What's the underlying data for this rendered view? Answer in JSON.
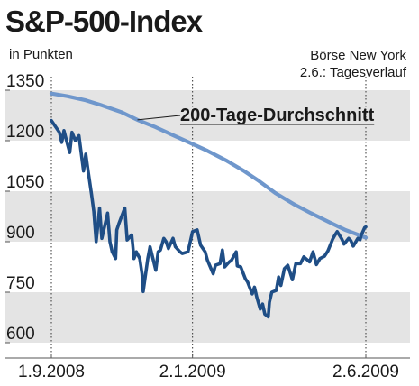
{
  "header": {
    "title": "S&P-500-Index",
    "unit": "in Punkten",
    "source_line1": "Börse New York",
    "source_line2": "2.6.: Tagesverlauf"
  },
  "colors": {
    "band": "#e4e4e4",
    "index_line": "#1f4e86",
    "ma_line": "#6f97cc",
    "axis": "#555555"
  },
  "chart_data": {
    "type": "line",
    "title": "S&P-500-Index",
    "ylabel": "in Punkten",
    "ylim": [
      580,
      1360
    ],
    "yticks": [
      600,
      750,
      900,
      1050,
      1200,
      1350
    ],
    "xticks": [
      {
        "date": "2008-09-01",
        "label": "1.9.2008"
      },
      {
        "date": "2009-01-02",
        "label": "2.1.2009"
      },
      {
        "date": "2009-06-02",
        "label": "2.6.2009"
      }
    ],
    "alternating_bands": true,
    "series": [
      {
        "name": "S&P-500-Index",
        "points": [
          [
            "2008-09-01",
            1260
          ],
          [
            "2008-09-05",
            1240
          ],
          [
            "2008-09-08",
            1225
          ],
          [
            "2008-09-10",
            1195
          ],
          [
            "2008-09-12",
            1230
          ],
          [
            "2008-09-15",
            1190
          ],
          [
            "2008-09-17",
            1165
          ],
          [
            "2008-09-19",
            1225
          ],
          [
            "2008-09-22",
            1200
          ],
          [
            "2008-09-25",
            1215
          ],
          [
            "2008-09-29",
            1110
          ],
          [
            "2008-10-01",
            1160
          ],
          [
            "2008-10-03",
            1110
          ],
          [
            "2008-10-06",
            1040
          ],
          [
            "2008-10-08",
            990
          ],
          [
            "2008-10-10",
            900
          ],
          [
            "2008-10-13",
            1000
          ],
          [
            "2008-10-15",
            910
          ],
          [
            "2008-10-17",
            940
          ],
          [
            "2008-10-20",
            985
          ],
          [
            "2008-10-22",
            900
          ],
          [
            "2008-10-24",
            870
          ],
          [
            "2008-10-27",
            850
          ],
          [
            "2008-10-28",
            935
          ],
          [
            "2008-10-30",
            955
          ],
          [
            "2008-11-04",
            1000
          ],
          [
            "2008-11-06",
            905
          ],
          [
            "2008-11-10",
            920
          ],
          [
            "2008-11-12",
            850
          ],
          [
            "2008-11-14",
            870
          ],
          [
            "2008-11-17",
            850
          ],
          [
            "2008-11-19",
            805
          ],
          [
            "2008-11-20",
            752
          ],
          [
            "2008-11-24",
            850
          ],
          [
            "2008-11-26",
            885
          ],
          [
            "2008-12-01",
            815
          ],
          [
            "2008-12-03",
            870
          ],
          [
            "2008-12-05",
            875
          ],
          [
            "2008-12-08",
            910
          ],
          [
            "2008-12-10",
            900
          ],
          [
            "2008-12-12",
            880
          ],
          [
            "2008-12-16",
            910
          ],
          [
            "2008-12-18",
            885
          ],
          [
            "2008-12-22",
            870
          ],
          [
            "2008-12-24",
            865
          ],
          [
            "2008-12-29",
            870
          ],
          [
            "2009-01-02",
            930
          ],
          [
            "2009-01-06",
            935
          ],
          [
            "2009-01-09",
            890
          ],
          [
            "2009-01-13",
            870
          ],
          [
            "2009-01-15",
            845
          ],
          [
            "2009-01-20",
            805
          ],
          [
            "2009-01-22",
            830
          ],
          [
            "2009-01-26",
            835
          ],
          [
            "2009-01-28",
            875
          ],
          [
            "2009-01-30",
            825
          ],
          [
            "2009-02-03",
            840
          ],
          [
            "2009-02-05",
            845
          ],
          [
            "2009-02-09",
            870
          ],
          [
            "2009-02-10",
            828
          ],
          [
            "2009-02-13",
            825
          ],
          [
            "2009-02-17",
            790
          ],
          [
            "2009-02-19",
            780
          ],
          [
            "2009-02-23",
            745
          ],
          [
            "2009-02-25",
            765
          ],
          [
            "2009-02-27",
            735
          ],
          [
            "2009-03-02",
            700
          ],
          [
            "2009-03-04",
            715
          ],
          [
            "2009-03-06",
            685
          ],
          [
            "2009-03-09",
            677
          ],
          [
            "2009-03-10",
            720
          ],
          [
            "2009-03-12",
            750
          ],
          [
            "2009-03-16",
            755
          ],
          [
            "2009-03-18",
            795
          ],
          [
            "2009-03-20",
            770
          ],
          [
            "2009-03-23",
            820
          ],
          [
            "2009-03-26",
            830
          ],
          [
            "2009-03-30",
            787
          ],
          [
            "2009-04-02",
            835
          ],
          [
            "2009-04-06",
            835
          ],
          [
            "2009-04-09",
            855
          ],
          [
            "2009-04-14",
            840
          ],
          [
            "2009-04-17",
            870
          ],
          [
            "2009-04-20",
            832
          ],
          [
            "2009-04-23",
            850
          ],
          [
            "2009-04-27",
            857
          ],
          [
            "2009-04-30",
            873
          ],
          [
            "2009-05-04",
            907
          ],
          [
            "2009-05-06",
            919
          ],
          [
            "2009-05-08",
            930
          ],
          [
            "2009-05-12",
            908
          ],
          [
            "2009-05-14",
            893
          ],
          [
            "2009-05-18",
            910
          ],
          [
            "2009-05-20",
            903
          ],
          [
            "2009-05-22",
            887
          ],
          [
            "2009-05-26",
            910
          ],
          [
            "2009-05-28",
            906
          ],
          [
            "2009-05-29",
            919
          ],
          [
            "2009-06-01",
            942
          ],
          [
            "2009-06-02",
            944
          ]
        ]
      },
      {
        "name": "200-Tage-Durchschnitt",
        "points": [
          [
            "2008-09-01",
            1340
          ],
          [
            "2008-09-15",
            1332
          ],
          [
            "2008-10-01",
            1320
          ],
          [
            "2008-10-15",
            1305
          ],
          [
            "2008-11-01",
            1285
          ],
          [
            "2008-11-15",
            1262
          ],
          [
            "2008-12-01",
            1240
          ],
          [
            "2008-12-15",
            1218
          ],
          [
            "2009-01-02",
            1190
          ],
          [
            "2009-01-15",
            1170
          ],
          [
            "2009-02-01",
            1140
          ],
          [
            "2009-02-15",
            1112
          ],
          [
            "2009-03-01",
            1080
          ],
          [
            "2009-03-15",
            1045
          ],
          [
            "2009-04-01",
            1010
          ],
          [
            "2009-04-15",
            985
          ],
          [
            "2009-05-01",
            958
          ],
          [
            "2009-05-15",
            935
          ],
          [
            "2009-06-02",
            912
          ]
        ]
      }
    ],
    "annotations": [
      {
        "text": "200-Tage-Durchschnitt",
        "series": "200-Tage-Durchschnitt"
      }
    ]
  }
}
